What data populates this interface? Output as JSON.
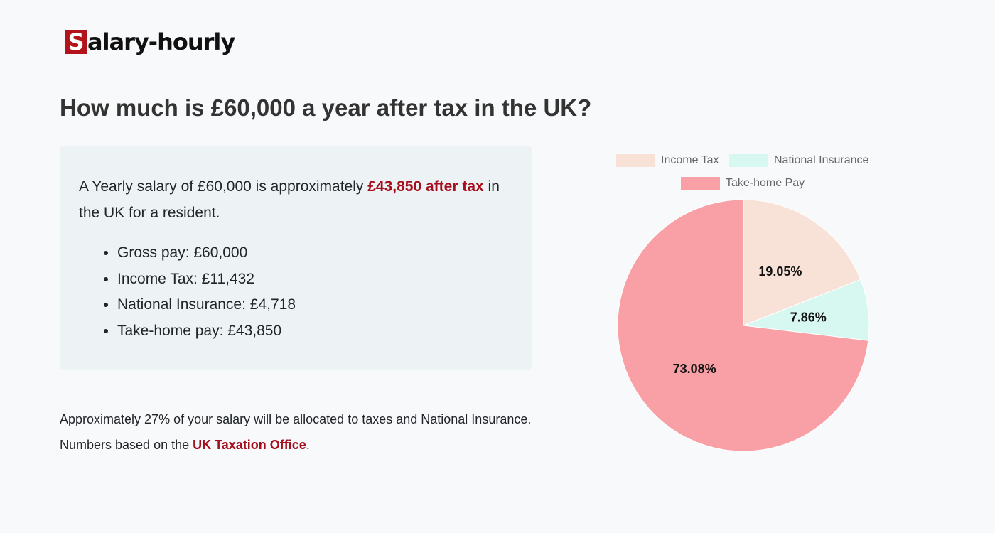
{
  "logo": {
    "letter": "S",
    "rest": "alary-hourly"
  },
  "title": "How much is £60,000 a year after tax in the UK?",
  "summary": {
    "pre": "A Yearly salary of £60,000 is approximately ",
    "highlight": "£43,850 after tax",
    "post": " in the UK for a resident."
  },
  "breakdown": [
    "Gross pay: £60,000",
    "Income Tax: £11,432",
    "National Insurance: £4,718",
    "Take-home pay: £43,850"
  ],
  "footer": {
    "line1": "Approximately 27% of your salary will be allocated to taxes and National Insurance.",
    "line2_pre": "Numbers based on the ",
    "link": "UK Taxation Office",
    "line2_post": "."
  },
  "chart_data": {
    "type": "pie",
    "categories": [
      "Income Tax",
      "National Insurance",
      "Take-home Pay"
    ],
    "values": [
      19.05,
      7.86,
      73.08
    ],
    "labels": [
      "19.05%",
      "7.86%",
      "73.08%"
    ],
    "colors": [
      "#f8e2d8",
      "#d7f7f1",
      "#f9a0a6"
    ],
    "legend": "top"
  }
}
